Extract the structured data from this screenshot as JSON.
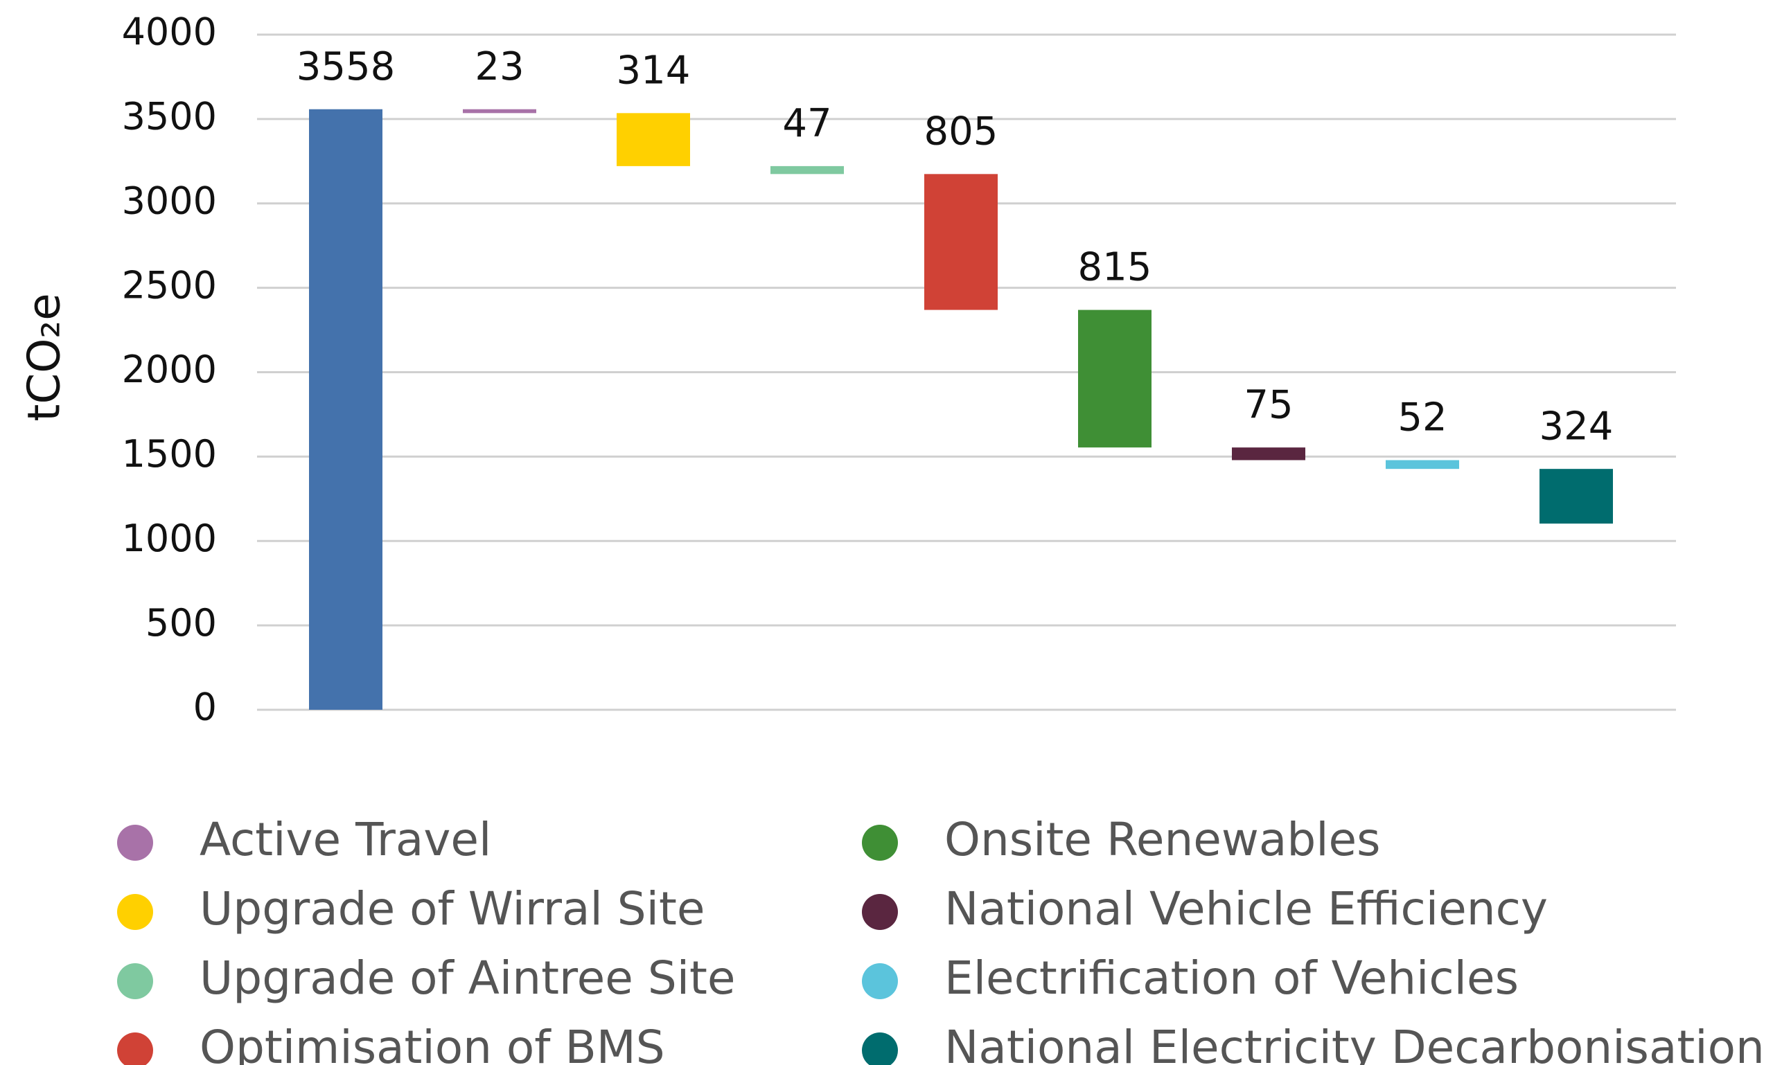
{
  "chart_data": {
    "type": "waterfall",
    "y_label": "tCO₂e",
    "ylim": [
      0,
      4000
    ],
    "yticks": [
      0,
      500,
      1000,
      1500,
      2000,
      2500,
      3000,
      3500,
      4000
    ],
    "grid": true,
    "bars": [
      {
        "value": 3558,
        "color": "#4472ac"
      },
      {
        "name": "Active Travel",
        "value": 23,
        "color": "#a872a8"
      },
      {
        "name": "Upgrade of Wirral Site",
        "value": 314,
        "color": "#ffd000"
      },
      {
        "name": "Upgrade of Aintree Site",
        "value": 47,
        "color": "#7fc9a0"
      },
      {
        "name": "Optimisation of BMS",
        "value": 805,
        "color": "#d04236"
      },
      {
        "name": "Onsite Renewables",
        "value": 815,
        "color": "#3f8f35"
      },
      {
        "name": "National Vehicle Efficiency",
        "value": 75,
        "color": "#5a2640"
      },
      {
        "name": "Electrification of Vehicles",
        "value": 52,
        "color": "#5bc4dc"
      },
      {
        "name": "National Electricity Decarbonisation",
        "value": 324,
        "color": "#006c6e"
      }
    ]
  }
}
